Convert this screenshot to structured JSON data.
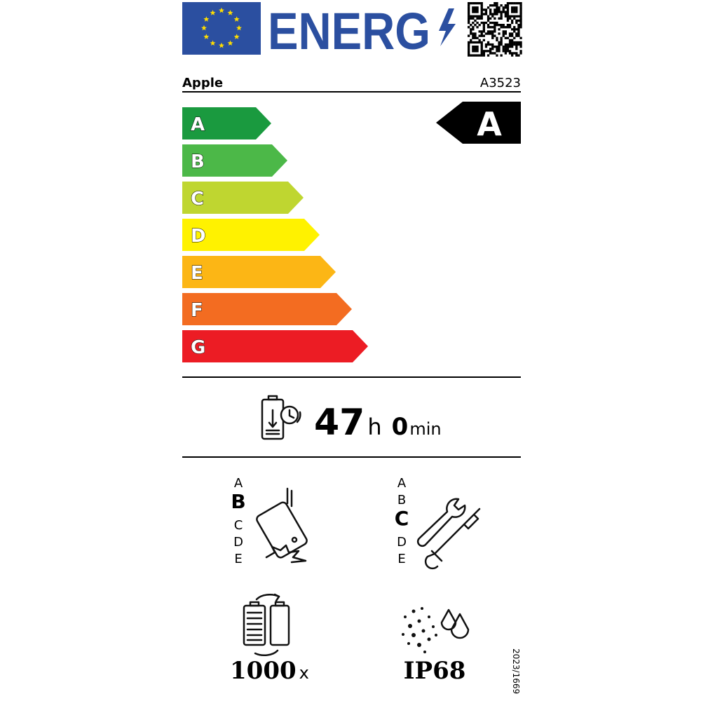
{
  "header": {
    "logo_text": "ENERG"
  },
  "supplier": "Apple",
  "model": "A3523",
  "scale": {
    "classes": [
      {
        "letter": "A",
        "color": "#1a9a3f"
      },
      {
        "letter": "B",
        "color": "#4cb848"
      },
      {
        "letter": "C",
        "color": "#bfd630"
      },
      {
        "letter": "D",
        "color": "#fff200"
      },
      {
        "letter": "E",
        "color": "#fcb615"
      },
      {
        "letter": "F",
        "color": "#f36c21"
      },
      {
        "letter": "G",
        "color": "#ec1c24"
      }
    ],
    "rating": "A"
  },
  "battery": {
    "hours": 47,
    "hours_unit": "h",
    "minutes": 0,
    "minutes_unit": "min"
  },
  "drop_resistance": {
    "classes": [
      "A",
      "B",
      "C",
      "D",
      "E"
    ],
    "rating": "B"
  },
  "repairability": {
    "classes": [
      "A",
      "B",
      "C",
      "D",
      "E"
    ],
    "rating": "C"
  },
  "battery_cycles": {
    "value": 1000,
    "unit": "x"
  },
  "ingress_protection": "IP68",
  "regulation": "2023/1669"
}
